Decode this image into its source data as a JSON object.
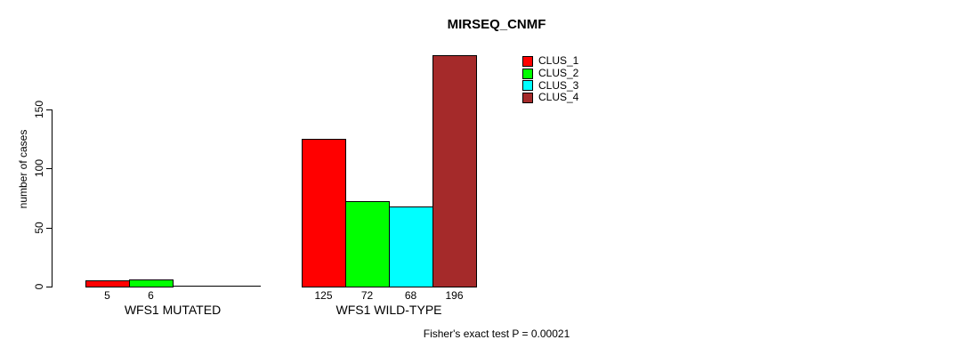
{
  "chart_data": {
    "type": "bar",
    "title": "MIRSEQ_CNMF",
    "ylabel": "number of cases",
    "xlabel": "",
    "categories": [
      "WFS1 MUTATED",
      "WFS1 WILD-TYPE"
    ],
    "series": [
      {
        "name": "CLUS_1",
        "color": "#FF0000",
        "values": [
          5,
          125
        ]
      },
      {
        "name": "CLUS_2",
        "color": "#00FF00",
        "values": [
          6,
          72
        ]
      },
      {
        "name": "CLUS_3",
        "color": "#00FFFF",
        "values": [
          0,
          68
        ]
      },
      {
        "name": "CLUS_4",
        "color": "#A52A2A",
        "values": [
          0,
          196
        ]
      }
    ],
    "bar_value_labels": [
      [
        "5",
        "6",
        "",
        ""
      ],
      [
        "125",
        "72",
        "68",
        "196"
      ]
    ],
    "yticks": [
      0,
      50,
      100,
      150
    ],
    "ylim": [
      0,
      150
    ],
    "grid": false,
    "legend_position": "top-right",
    "annotation": "Fisher's exact test P = 0.00021"
  }
}
